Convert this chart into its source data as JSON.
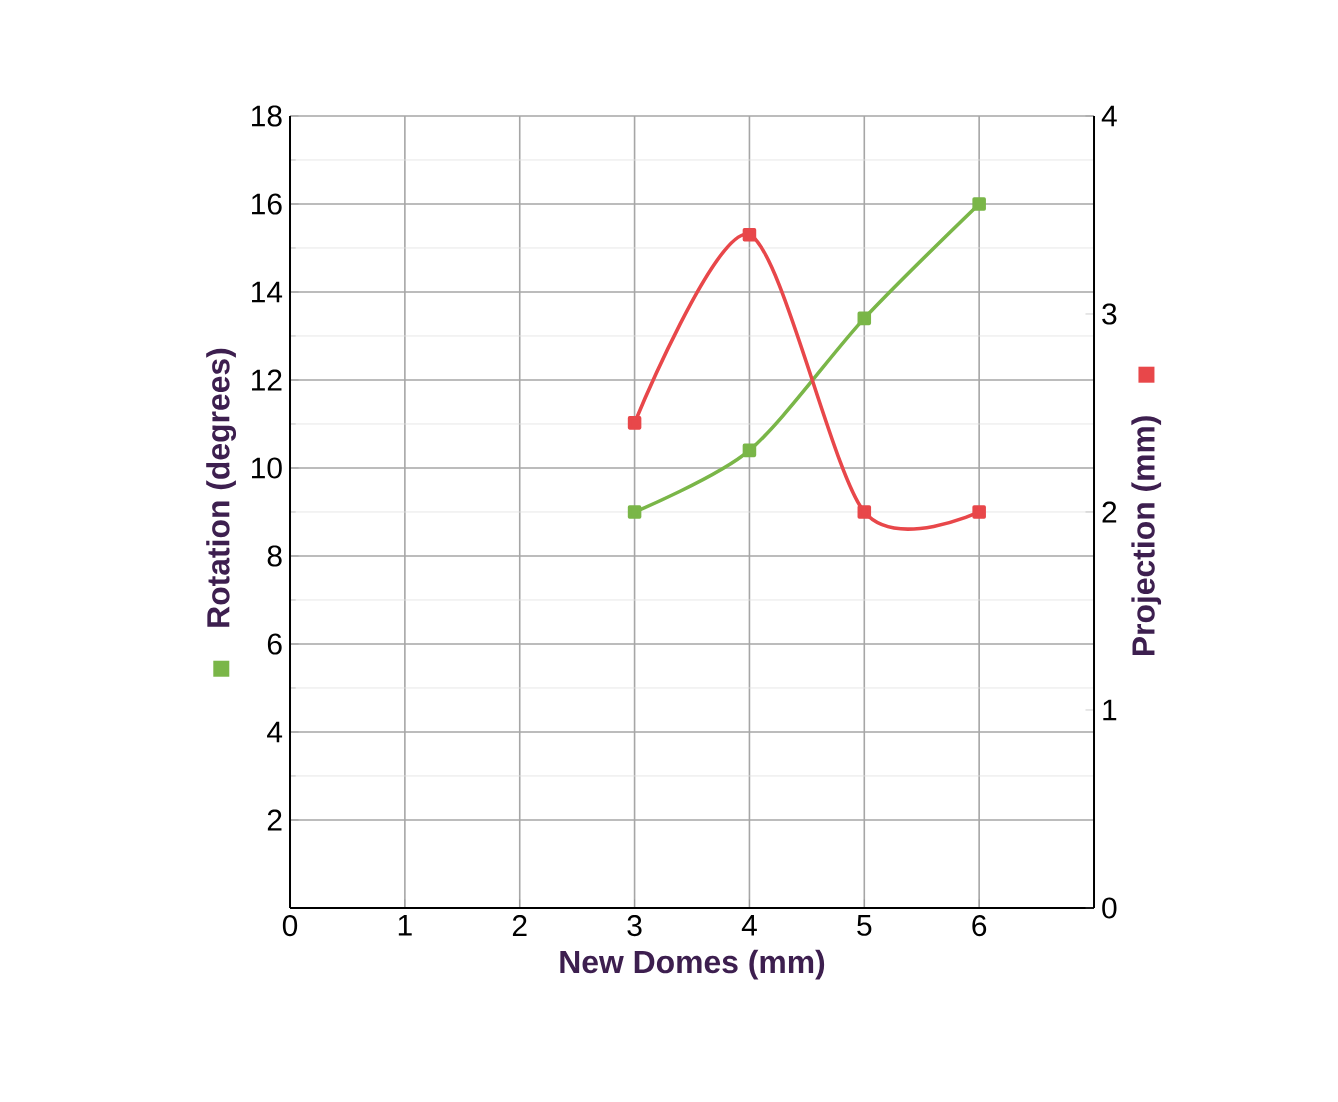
{
  "chart_data": {
    "type": "line",
    "xlabel": "New Domes (mm)",
    "ylabel": "Rotation (degrees)",
    "y2label": "Projection (mm)",
    "x": [
      3,
      4,
      5,
      6
    ],
    "series": [
      {
        "color": "#7ab648",
        "values": [
          9,
          10.4,
          13.4,
          16
        ]
      },
      {
        "color": "#e8474a",
        "values": [
          2.45,
          3.4,
          2,
          2
        ],
        "axis": "y2"
      }
    ],
    "xlim": [
      0,
      7
    ],
    "xticks": [
      0,
      1,
      2,
      3,
      4,
      5,
      6
    ],
    "ylim": [
      0,
      18
    ],
    "yticks": [
      2,
      4,
      6,
      8,
      10,
      12,
      14,
      16,
      18
    ],
    "y2lim": [
      0,
      4
    ],
    "y2ticks": [
      0,
      1,
      2,
      3,
      4
    ],
    "grid": true,
    "marker": "square",
    "line_style": "solid"
  }
}
